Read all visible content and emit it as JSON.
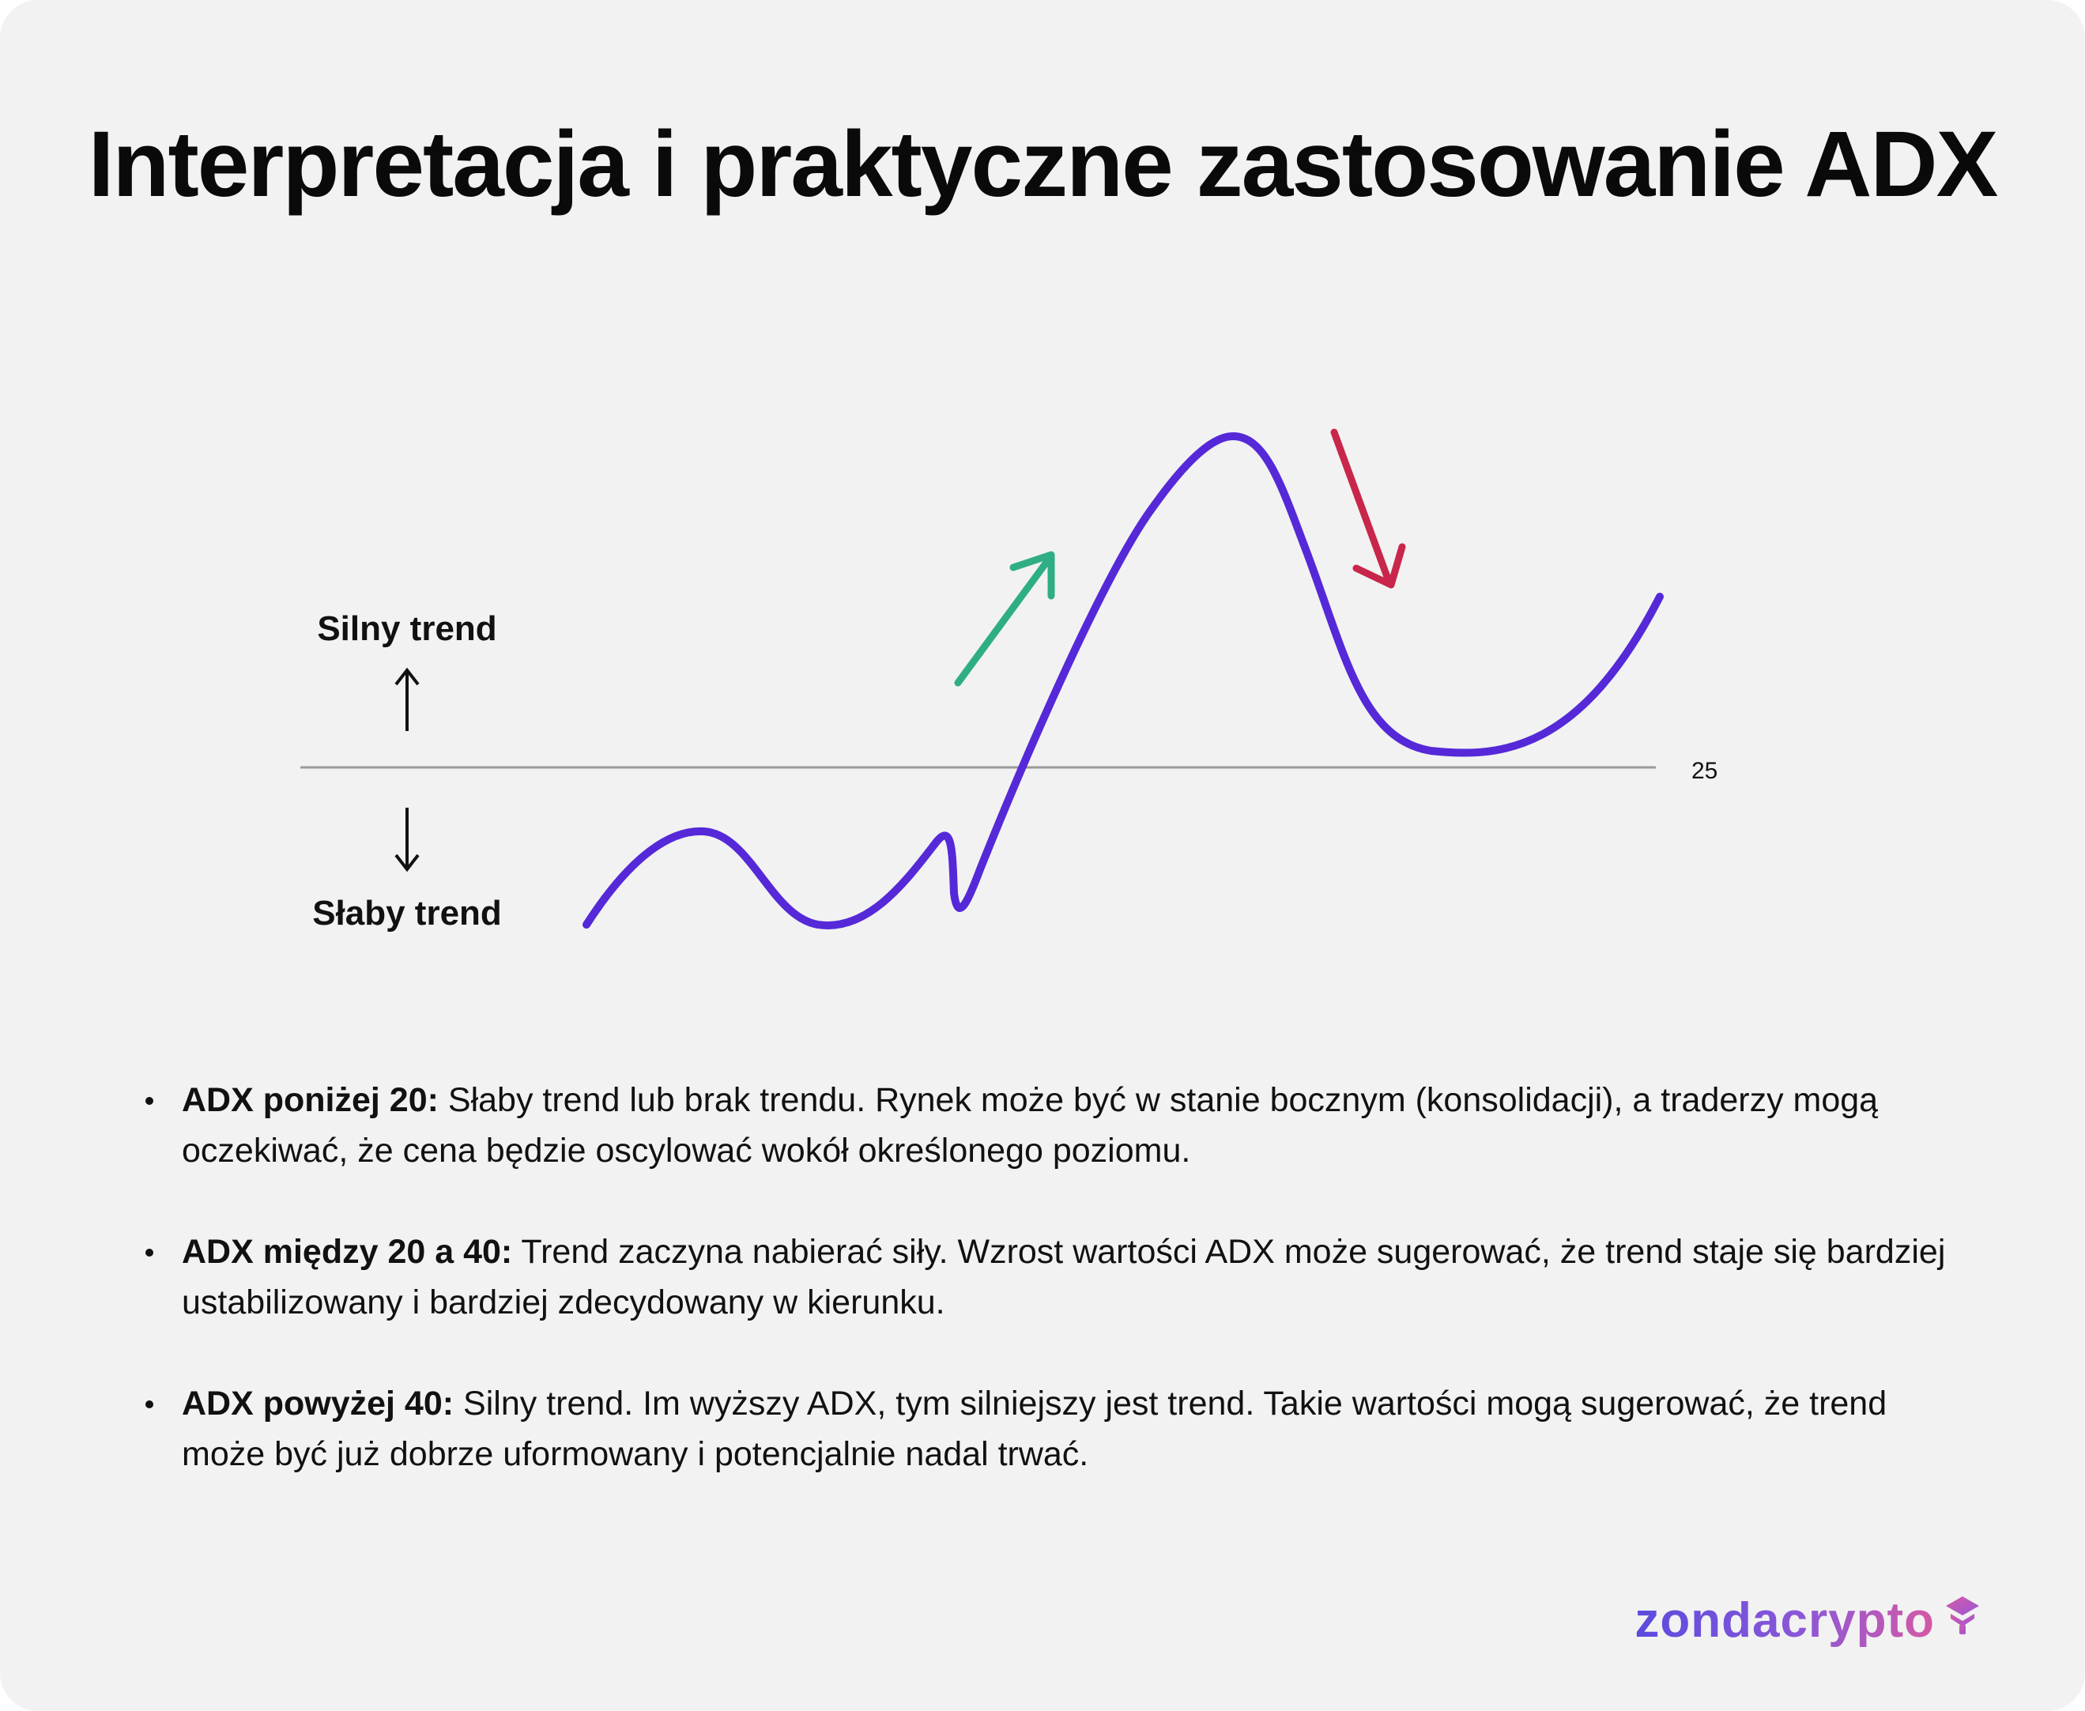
{
  "title": "Interpretacja i praktyczne zastosowanie ADX",
  "diagram": {
    "threshold_label": "25",
    "strong_label": "Silny trend",
    "weak_label": "Słaby trend",
    "colors": {
      "line": "#5529d8",
      "arrow_up": "#2fae85",
      "arrow_down": "#c8264a",
      "threshold": "#9a9a9a"
    }
  },
  "bullets": [
    {
      "term": "ADX poniżej 20:",
      "text": " Słaby trend lub brak trendu. Rynek może być w stanie bocznym (konsolidacji), a traderzy mogą oczekiwać, że cena będzie oscylować wokół określonego poziomu."
    },
    {
      "term": "ADX między 20 a 40:",
      "text": " Trend zaczyna nabierać siły. Wzrost wartości ADX może sugerować, że trend staje się bardziej ustabilizowany i bardziej zdecydowany w kierunku."
    },
    {
      "term": "ADX powyżej 40:",
      "text": " Silny trend. Im wyższy ADX, tym silniejszy jest trend. Takie wartości mogą sugerować, że trend może być już dobrze uformowany i potencjalnie nadal trwać."
    }
  ],
  "brand": {
    "name": "zondacrypto",
    "icon": "zonda-logo-icon"
  }
}
